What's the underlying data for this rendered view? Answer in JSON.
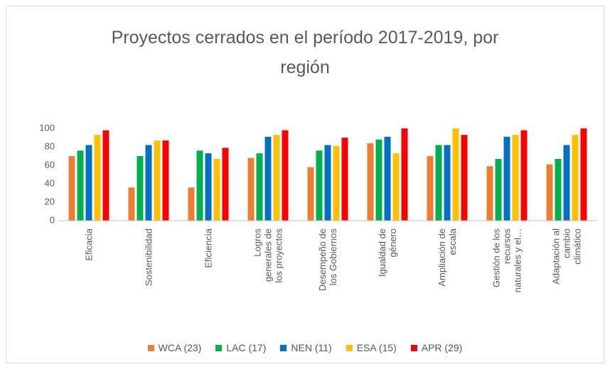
{
  "chart_data": {
    "type": "bar",
    "title": "Proyectos cerrados en el período 2017-2019, por región",
    "categories": [
      "Eficacia",
      "Sostenibilidad",
      "Eficiencia",
      "Logros generales de los proyectos",
      "Desempeño de los Gobiernos",
      "Igualdad de género",
      "Ampliación de escala",
      "Gestión de los recursos naturales y el…",
      "Adaptación al cambio climático"
    ],
    "series": [
      {
        "name": "WCA (23)",
        "color": "#ed7d31",
        "values": [
          70,
          36,
          36,
          68,
          58,
          84,
          70,
          59,
          61
        ]
      },
      {
        "name": "LAC (17)",
        "color": "#00b050",
        "values": [
          76,
          70,
          76,
          73,
          76,
          88,
          82,
          67,
          67
        ]
      },
      {
        "name": "NEN (11)",
        "color": "#0070c0",
        "values": [
          82,
          82,
          73,
          91,
          82,
          91,
          82,
          91,
          82
        ]
      },
      {
        "name": "ESA (15)",
        "color": "#ffc000",
        "values": [
          93,
          87,
          67,
          93,
          81,
          73,
          100,
          93,
          93
        ]
      },
      {
        "name": "APR (29)",
        "color": "#ff0000",
        "values": [
          98,
          87,
          79,
          98,
          90,
          100,
          93,
          98,
          100
        ]
      }
    ],
    "ylim": [
      0,
      100
    ],
    "yticks": [
      0,
      20,
      40,
      60,
      80,
      100
    ],
    "grid": false,
    "legend": "bottom"
  }
}
